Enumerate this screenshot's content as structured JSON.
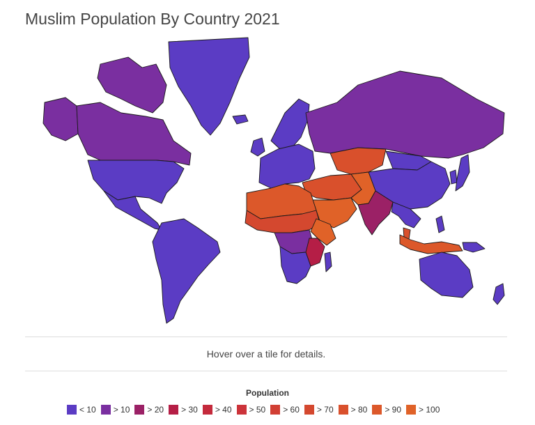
{
  "title": "Muslim Population By Country 2021",
  "info_text": "Hover over a tile for details.",
  "legend": {
    "title": "Population",
    "items": [
      {
        "label": "< 10",
        "color": "#5b3cc4"
      },
      {
        "label": "> 10",
        "color": "#7a2fa0"
      },
      {
        "label": "> 20",
        "color": "#9b2166"
      },
      {
        "label": "> 30",
        "color": "#b51e46"
      },
      {
        "label": "> 40",
        "color": "#c42a3c"
      },
      {
        "label": "> 50",
        "color": "#cc333a"
      },
      {
        "label": "> 60",
        "color": "#d13f34"
      },
      {
        "label": "> 70",
        "color": "#d4482f"
      },
      {
        "label": "> 80",
        "color": "#d9502c"
      },
      {
        "label": "> 90",
        "color": "#dc582a"
      },
      {
        "label": "> 100",
        "color": "#e06228"
      }
    ]
  },
  "regions": [
    {
      "name": "greenland",
      "bin": 0
    },
    {
      "name": "canada",
      "bin": 1
    },
    {
      "name": "alaska",
      "bin": 1
    },
    {
      "name": "arctic-islands",
      "bin": 1
    },
    {
      "name": "usa",
      "bin": 0
    },
    {
      "name": "mexico-central-america",
      "bin": 0
    },
    {
      "name": "south-america",
      "bin": 0
    },
    {
      "name": "europe",
      "bin": 0
    },
    {
      "name": "scandinavia",
      "bin": 0
    },
    {
      "name": "uk-ireland",
      "bin": 0
    },
    {
      "name": "iceland",
      "bin": 0
    },
    {
      "name": "russia",
      "bin": 1
    },
    {
      "name": "central-asia",
      "bin": 8
    },
    {
      "name": "middle-east",
      "bin": 8
    },
    {
      "name": "arabia",
      "bin": 10
    },
    {
      "name": "north-africa",
      "bin": 9
    },
    {
      "name": "sahel",
      "bin": 7
    },
    {
      "name": "horn-of-africa",
      "bin": 10
    },
    {
      "name": "central-africa",
      "bin": 1
    },
    {
      "name": "east-africa",
      "bin": 3
    },
    {
      "name": "southern-africa",
      "bin": 0
    },
    {
      "name": "madagascar",
      "bin": 0
    },
    {
      "name": "south-asia",
      "bin": 2
    },
    {
      "name": "pakistan-afghanistan",
      "bin": 10
    },
    {
      "name": "china",
      "bin": 0
    },
    {
      "name": "mongolia",
      "bin": 0
    },
    {
      "name": "southeast-asia",
      "bin": 0
    },
    {
      "name": "japan",
      "bin": 0
    },
    {
      "name": "korea",
      "bin": 0
    },
    {
      "name": "indonesia",
      "bin": 9
    },
    {
      "name": "malaysia",
      "bin": 8
    },
    {
      "name": "new-guinea",
      "bin": 0
    },
    {
      "name": "australia",
      "bin": 0
    },
    {
      "name": "new-zealand",
      "bin": 0
    },
    {
      "name": "philippines",
      "bin": 0
    }
  ]
}
